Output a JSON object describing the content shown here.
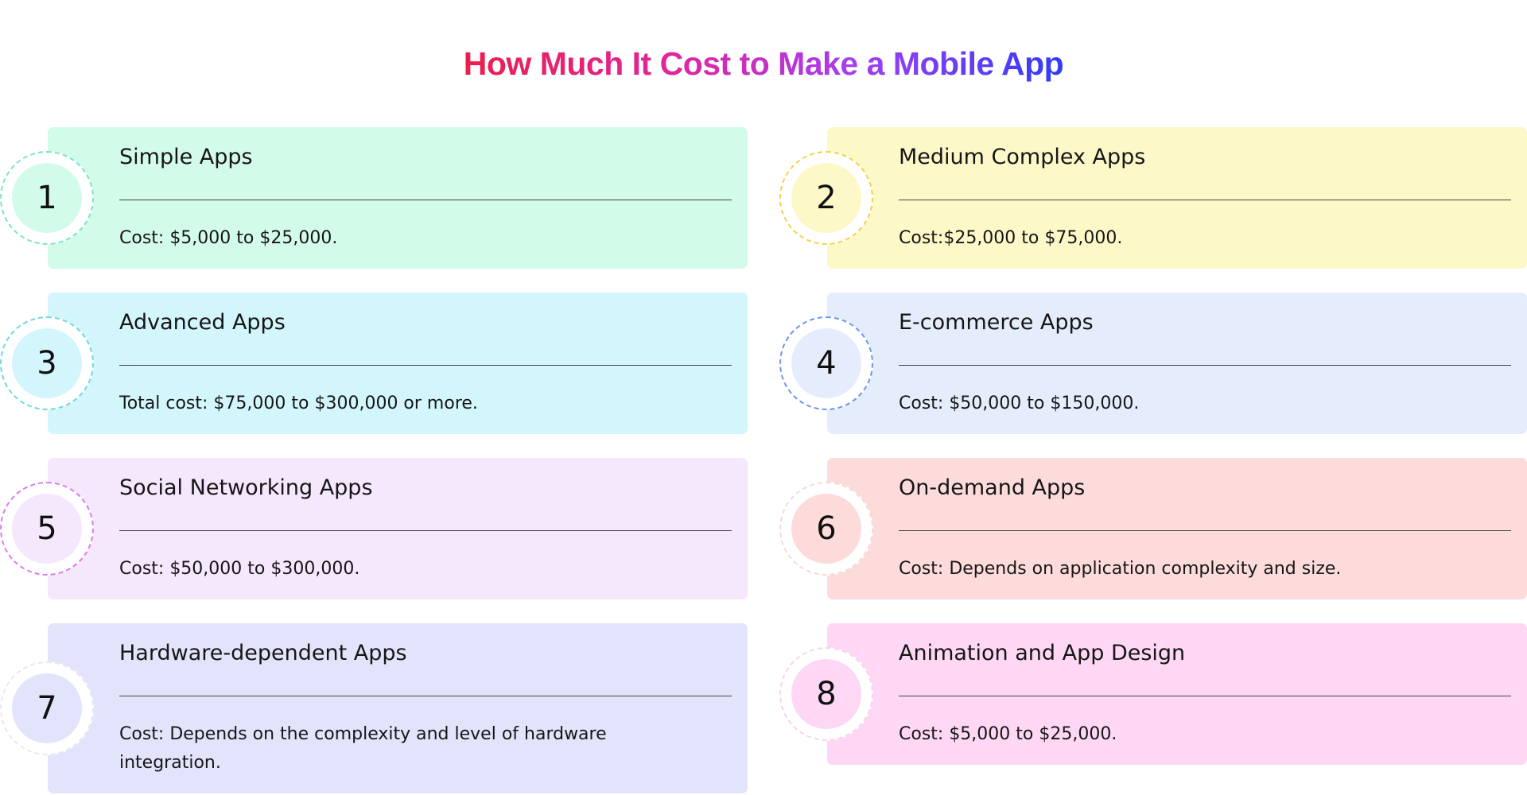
{
  "title": "How Much It Cost to Make a Mobile App",
  "cards": [
    {
      "number": "1",
      "title": "Simple Apps",
      "desc": "Cost: $5,000 to $25,000.",
      "bg": "#d3fbea",
      "badge_fill": "#d3fbea",
      "badge_border": "#7de6c3"
    },
    {
      "number": "2",
      "title": "Medium Complex Apps",
      "desc": "Cost:$25,000 to $75,000.",
      "bg": "#fdf8c8",
      "badge_fill": "#fdf8c8",
      "badge_border": "#f2d34d"
    },
    {
      "number": "3",
      "title": "Advanced Apps",
      "desc": "Total cost: $75,000 to $300,000 or more.",
      "bg": "#d3f6fc",
      "badge_fill": "#d3f6fc",
      "badge_border": "#6fdada"
    },
    {
      "number": "4",
      "title": "E-commerce Apps",
      "desc": "Cost: $50,000 to $150,000.",
      "bg": "#e5edfc",
      "badge_fill": "#e5edfc",
      "badge_border": "#6f95ef"
    },
    {
      "number": "5",
      "title": "Social Networking Apps",
      "desc": "Cost: $50,000 to $300,000.",
      "bg": "#f5e7fc",
      "badge_fill": "#f5e7fc",
      "badge_border": "#dc7cf0"
    },
    {
      "number": "6",
      "title": "On-demand Apps",
      "desc": "Cost: Depends on application complexity and size.",
      "bg": "#fddbdb",
      "badge_fill": "#fddbdb",
      "badge_border": "#f4dada"
    },
    {
      "number": "7",
      "title": "Hardware-dependent Apps",
      "desc": "Cost: Depends on the complexity and level of hardware integration.",
      "bg": "#e2e4fb",
      "badge_fill": "#e2e4fb",
      "badge_border": "#e8e8f4"
    },
    {
      "number": "8",
      "title": "Animation and App Design",
      "desc": "Cost: $5,000 to $25,000.",
      "bg": "#fdd7f4",
      "badge_fill": "#fdd7f4",
      "badge_border": "#f9d4ea"
    }
  ]
}
